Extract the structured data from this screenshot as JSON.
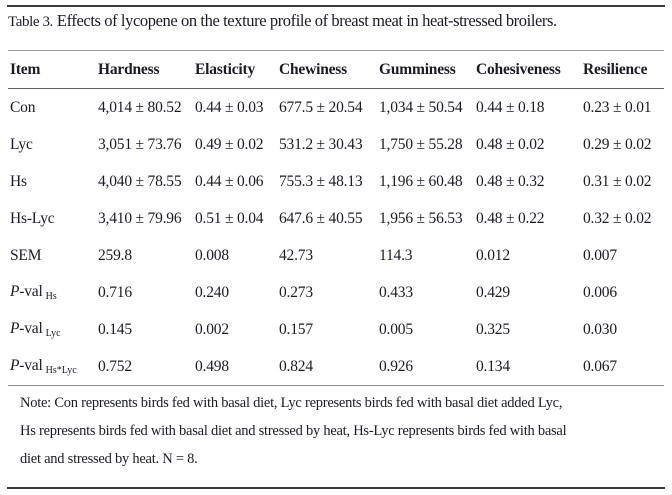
{
  "caption": {
    "label": "Table 3.",
    "text": "Effects of lycopene on the texture profile of breast meat in heat-stressed broilers."
  },
  "table": {
    "columns": [
      "Item",
      "Hardness",
      "Elasticity",
      "Chewiness",
      "Gumminess",
      "Cohesiveness",
      "Resilience"
    ],
    "rows": [
      {
        "label": "Con",
        "values": [
          "4,014 ± 80.52",
          "0.44 ± 0.03",
          "677.5 ± 20.54",
          "1,034 ± 50.54",
          "0.44 ± 0.18",
          "0.23 ± 0.01"
        ]
      },
      {
        "label": "Lyc",
        "values": [
          "3,051 ± 73.76",
          "0.49 ± 0.02",
          "531.2 ± 30.43",
          "1,750 ± 55.28",
          "0.48 ± 0.02",
          "0.29 ± 0.02"
        ]
      },
      {
        "label": "Hs",
        "values": [
          "4,040 ± 78.55",
          "0.44 ± 0.06",
          "755.3 ± 48.13",
          "1,196 ± 60.48",
          "0.48 ± 0.32",
          "0.31 ± 0.02"
        ]
      },
      {
        "label": "Hs-Lyc",
        "values": [
          "3,410 ± 79.96",
          "0.51 ± 0.04",
          "647.6 ± 40.55",
          "1,956 ± 56.53",
          "0.48 ± 0.22",
          "0.32 ± 0.02"
        ]
      },
      {
        "label": "SEM",
        "values": [
          "259.8",
          "0.008",
          "42.73",
          "114.3",
          "0.012",
          "0.007"
        ]
      },
      {
        "label_italic": "P",
        "label": "-val",
        "label_sub": "Hs",
        "values": [
          "0.716",
          "0.240",
          "0.273",
          "0.433",
          "0.429",
          "0.006"
        ]
      },
      {
        "label_italic": "P",
        "label": "-val",
        "label_sub": "Lyc",
        "values": [
          "0.145",
          "0.002",
          "0.157",
          "0.005",
          "0.325",
          "0.030"
        ]
      },
      {
        "label_italic": "P",
        "label": "-val",
        "label_sub": "Hs*Lyc",
        "values": [
          "0.752",
          "0.498",
          "0.824",
          "0.926",
          "0.134",
          "0.067"
        ]
      }
    ]
  },
  "note": {
    "lines": [
      "Note: Con represents birds fed with basal diet, Lyc represents birds fed with basal diet added Lyc,",
      "Hs represents birds fed with basal diet and stressed by heat, Hs-Lyc represents birds fed with basal",
      "diet and stressed by heat. N = 8."
    ]
  },
  "colors": {
    "text": "#1b1b26",
    "rule_dark": "#3a3a3a",
    "rule_light": "#9b9b9b",
    "rule_mid": "#606060",
    "rule_table_bottom": "#8e8e8e",
    "background": "#ffffff"
  }
}
